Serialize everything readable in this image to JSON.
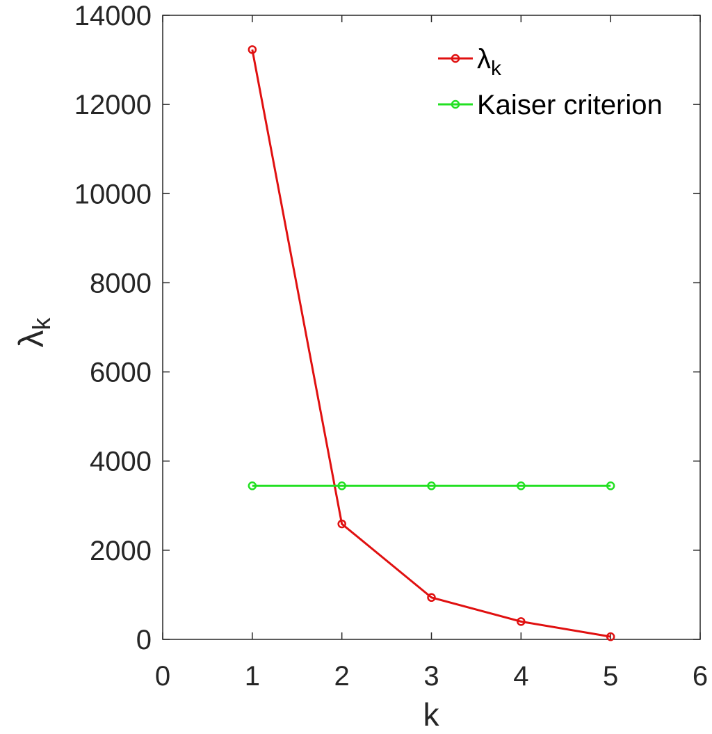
{
  "chart_data": {
    "type": "line",
    "title": "",
    "xlabel": "k",
    "ylabel_main": "λ",
    "ylabel_sub": "k",
    "xlim": [
      0,
      6
    ],
    "ylim": [
      0,
      14000
    ],
    "xticks": [
      0,
      1,
      2,
      3,
      4,
      5,
      6
    ],
    "yticks": [
      0,
      2000,
      4000,
      6000,
      8000,
      10000,
      12000,
      14000
    ],
    "grid": false,
    "legend_position": "top-right",
    "series": [
      {
        "name_main": "λ",
        "name_sub": "k",
        "color": "#e01010",
        "marker": "circle",
        "x": [
          1,
          2,
          3,
          4,
          5
        ],
        "y": [
          13230,
          2590,
          940,
          400,
          60
        ]
      },
      {
        "name_main": "Kaiser criterion",
        "name_sub": "",
        "color": "#22e022",
        "marker": "circle",
        "x": [
          1,
          2,
          3,
          4,
          5
        ],
        "y": [
          3445,
          3445,
          3445,
          3445,
          3445
        ]
      }
    ]
  }
}
